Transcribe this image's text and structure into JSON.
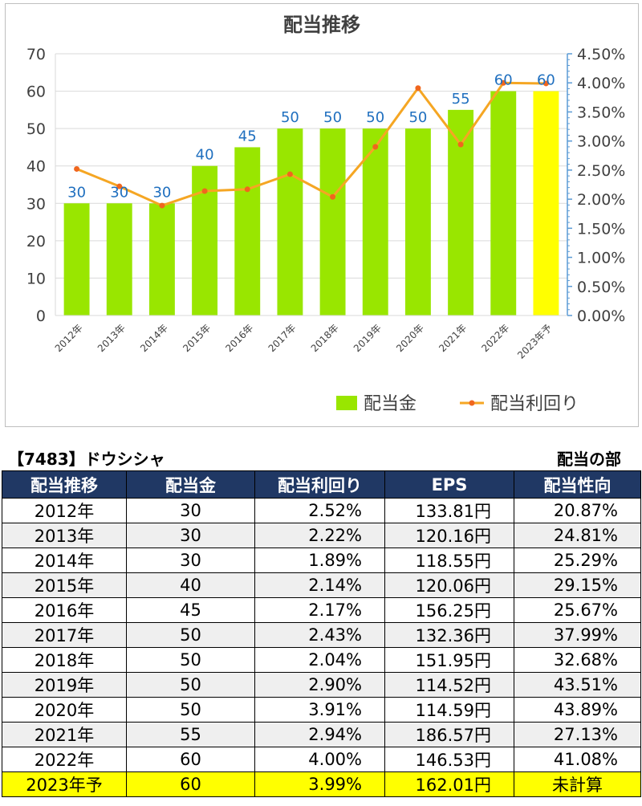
{
  "chart_data": {
    "type": "bar",
    "title": "配当推移",
    "categories": [
      "2012年",
      "2013年",
      "2014年",
      "2015年",
      "2016年",
      "2017年",
      "2018年",
      "2019年",
      "2020年",
      "2021年",
      "2022年",
      "2023年予"
    ],
    "series": [
      {
        "name": "配当金",
        "type": "bar",
        "axis": "left",
        "color": "#99e600",
        "forecast_color": "#ffff00",
        "values": [
          30,
          30,
          30,
          40,
          45,
          50,
          50,
          50,
          50,
          55,
          60,
          60
        ]
      },
      {
        "name": "配当利回り",
        "type": "line",
        "axis": "right",
        "color": "#f5a623",
        "values": [
          2.52,
          2.22,
          1.89,
          2.14,
          2.17,
          2.43,
          2.04,
          2.9,
          3.91,
          2.94,
          4.0,
          3.99
        ]
      }
    ],
    "y_left": {
      "ticks": [
        "0",
        "10",
        "20",
        "30",
        "40",
        "50",
        "60",
        "70"
      ],
      "range": [
        0,
        70
      ]
    },
    "y_right": {
      "ticks": [
        "0.00%",
        "0.50%",
        "1.00%",
        "1.50%",
        "2.00%",
        "2.50%",
        "3.00%",
        "3.50%",
        "4.00%",
        "4.50%"
      ],
      "range": [
        0,
        4.5
      ]
    },
    "data_labels": [
      "30",
      "30",
      "30",
      "40",
      "45",
      "50",
      "50",
      "50",
      "50",
      "55",
      "60",
      "60"
    ],
    "grid": true,
    "legend_position": "bottom-right"
  },
  "header": {
    "ticker": "【7483】ドウシシャ",
    "section": "配当の部"
  },
  "table": {
    "columns": [
      "配当推移",
      "配当金",
      "配当利回り",
      "EPS",
      "配当性向"
    ],
    "rows": [
      [
        "2012年",
        "30",
        "2.52%",
        "133.81円",
        "20.87%"
      ],
      [
        "2013年",
        "30",
        "2.22%",
        "120.16円",
        "24.81%"
      ],
      [
        "2014年",
        "30",
        "1.89%",
        "118.55円",
        "25.29%"
      ],
      [
        "2015年",
        "40",
        "2.14%",
        "120.06円",
        "29.15%"
      ],
      [
        "2016年",
        "45",
        "2.17%",
        "156.25円",
        "25.67%"
      ],
      [
        "2017年",
        "50",
        "2.43%",
        "132.36円",
        "37.99%"
      ],
      [
        "2018年",
        "50",
        "2.04%",
        "151.95円",
        "32.68%"
      ],
      [
        "2019年",
        "50",
        "2.90%",
        "114.52円",
        "43.51%"
      ],
      [
        "2020年",
        "50",
        "3.91%",
        "114.59円",
        "43.89%"
      ],
      [
        "2021年",
        "55",
        "2.94%",
        "186.57円",
        "27.13%"
      ],
      [
        "2022年",
        "60",
        "4.00%",
        "146.53円",
        "41.08%"
      ],
      [
        "2023年予",
        "60",
        "3.99%",
        "162.01円",
        "未計算"
      ]
    ]
  }
}
